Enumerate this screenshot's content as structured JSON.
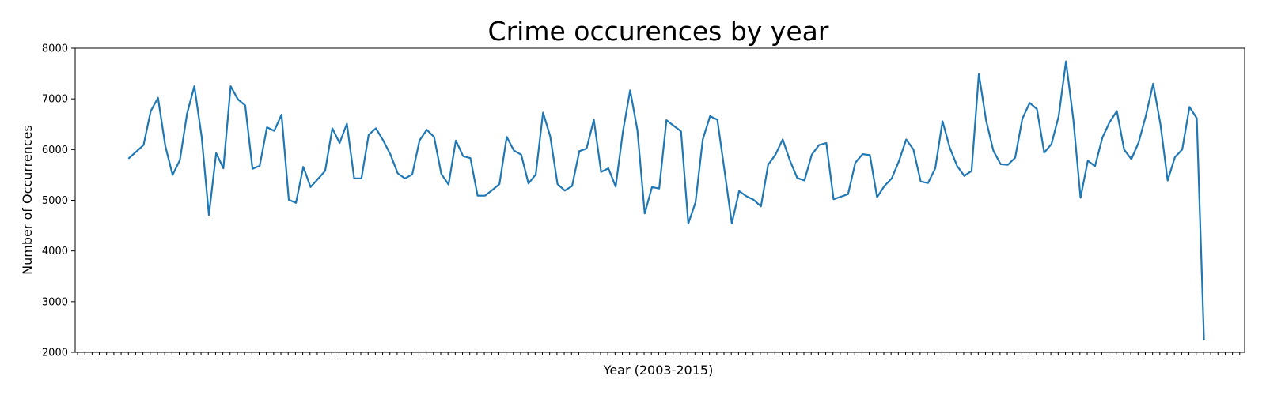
{
  "chart_data": {
    "type": "line",
    "title": "Crime occurences by year",
    "xlabel": "Year (2003-2015)",
    "ylabel": "Number of Occurrences",
    "ylim": [
      2000,
      8000
    ],
    "yticks": [
      "2000",
      "3000",
      "4000",
      "5000",
      "6000",
      "7000",
      "8000"
    ],
    "grid": false,
    "line_color": "#1f77b4",
    "series": [
      {
        "values": [
          5830,
          5960,
          6090,
          6760,
          7020,
          6070,
          5500,
          5790,
          6710,
          7250,
          6260,
          4710,
          5930,
          5630,
          7250,
          6990,
          6870,
          5620,
          5680,
          6440,
          6370,
          6690,
          5010,
          4950,
          5660,
          5260,
          5420,
          5580,
          6420,
          6130,
          6510,
          5430,
          5430,
          6290,
          6420,
          6180,
          5900,
          5530,
          5430,
          5510,
          6180,
          6390,
          6250,
          5520,
          5310,
          6180,
          5870,
          5830,
          5090,
          5090,
          5200,
          5320,
          6250,
          5980,
          5900,
          5330,
          5510,
          6730,
          6260,
          5320,
          5190,
          5280,
          5970,
          6020,
          6590,
          5560,
          5630,
          5270,
          6350,
          7170,
          6380,
          4740,
          5260,
          5230,
          6580,
          6470,
          6360,
          4540,
          4960,
          6200,
          6660,
          6590,
          5570,
          4540,
          5180,
          5080,
          5010,
          4880,
          5700,
          5900,
          6200,
          5780,
          5440,
          5390,
          5900,
          6090,
          6130,
          5020,
          5070,
          5120,
          5740,
          5910,
          5890,
          5060,
          5280,
          5430,
          5770,
          6200,
          6000,
          5370,
          5340,
          5630,
          6560,
          6040,
          5680,
          5480,
          5580,
          7490,
          6580,
          5980,
          5710,
          5700,
          5840,
          6610,
          6920,
          6800,
          5940,
          6110,
          6660,
          7740,
          6610,
          5050,
          5780,
          5670,
          6230,
          6540,
          6760,
          6000,
          5810,
          6140,
          6670,
          7300,
          6500,
          5390,
          5850,
          6000,
          6840,
          6620,
          2250
        ]
      }
    ]
  }
}
